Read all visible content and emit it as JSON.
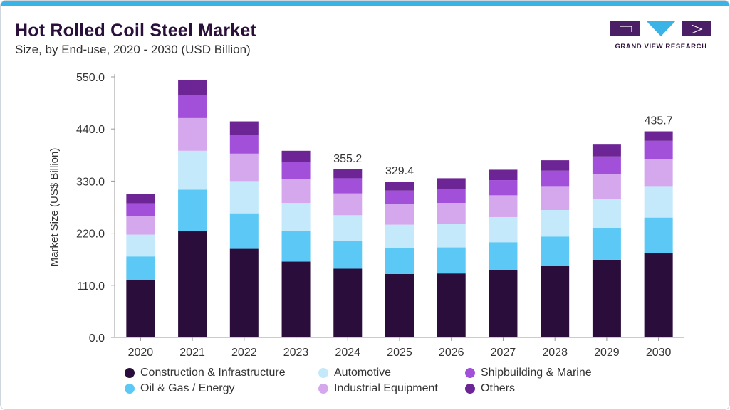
{
  "header": {
    "title": "Hot Rolled Coil Steel Market",
    "subtitle": "Size, by End-use, 2020 - 2030 (USD Billion)"
  },
  "brand": {
    "name": "GRAND VIEW RESEARCH"
  },
  "chart_data": {
    "type": "bar",
    "stacked": true,
    "title": "Hot Rolled Coil Steel Market",
    "ylabel": "Market Size (US$ Billion)",
    "xlabel": "",
    "ylim": [
      0,
      550
    ],
    "yticks": [
      "0.0",
      "110.0",
      "220.0",
      "330.0",
      "440.0",
      "550.0"
    ],
    "categories": [
      "2020",
      "2021",
      "2022",
      "2023",
      "2024",
      "2025",
      "2026",
      "2027",
      "2028",
      "2029",
      "2030"
    ],
    "series": [
      {
        "name": "Construction & Infrastructure",
        "color": "#2b0d3c",
        "values": [
          122,
          224,
          187,
          160,
          145,
          134,
          135,
          143,
          151,
          164,
          178
        ]
      },
      {
        "name": "Oil & Gas / Energy",
        "color": "#5bc8f5",
        "values": [
          49,
          88,
          75,
          65,
          59,
          54,
          55,
          58,
          62,
          67,
          75
        ]
      },
      {
        "name": "Automotive",
        "color": "#c3e9fb",
        "values": [
          46,
          82,
          68,
          59,
          54,
          50,
          50,
          53,
          56,
          61,
          65
        ]
      },
      {
        "name": "Industrial Equipment",
        "color": "#d5a8ee",
        "values": [
          39,
          69,
          58,
          51,
          46,
          43,
          44,
          46,
          49,
          53,
          58
        ]
      },
      {
        "name": "Shipbuilding & Marine",
        "color": "#a24fda",
        "values": [
          27,
          48,
          40,
          35,
          32,
          29,
          30,
          32,
          34,
          37,
          39
        ]
      },
      {
        "name": "Others",
        "color": "#6d2596",
        "values": [
          20,
          33,
          28,
          24,
          19,
          19,
          22,
          22,
          22,
          25,
          20
        ]
      }
    ],
    "data_labels": [
      {
        "category": "2024",
        "text": "355.2"
      },
      {
        "category": "2025",
        "text": "329.4"
      },
      {
        "category": "2030",
        "text": "435.7"
      }
    ],
    "legend": "bottom"
  }
}
